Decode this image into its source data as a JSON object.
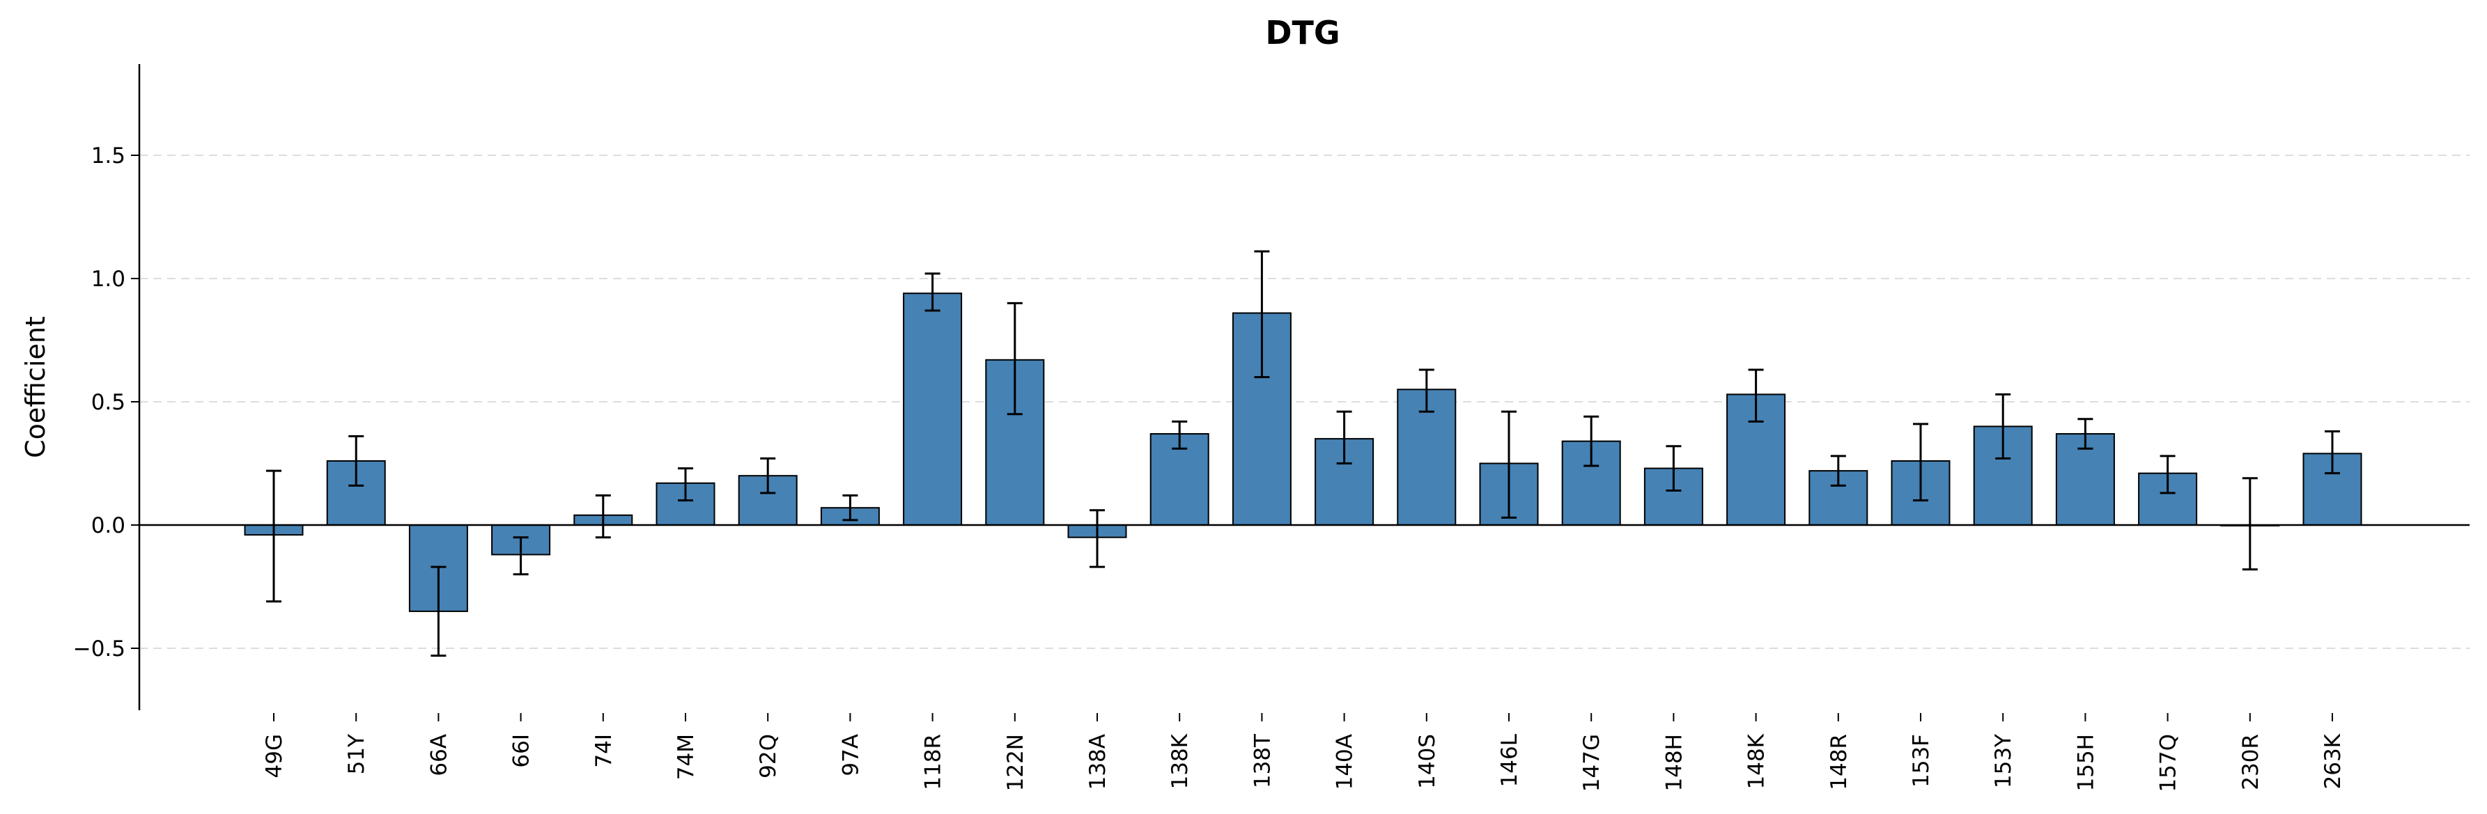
{
  "chart_data": {
    "type": "bar",
    "title": "DTG",
    "xlabel": "",
    "ylabel": "Coefficient",
    "ylim": [
      -0.75,
      1.88
    ],
    "yticks": [
      -0.5,
      0.0,
      0.5,
      1.0,
      1.5
    ],
    "ytick_labels": [
      "−0.5",
      "0.0",
      "0.5",
      "1.0",
      "1.5"
    ],
    "grid": "horizontal dashed",
    "categories": [
      "49G",
      "51Y",
      "66A",
      "66I",
      "74I",
      "74M",
      "92Q",
      "97A",
      "118R",
      "122N",
      "138A",
      "138K",
      "138T",
      "140A",
      "140S",
      "146L",
      "147G",
      "148H",
      "148K",
      "148R",
      "153F",
      "153Y",
      "155H",
      "157Q",
      "230R",
      "263K"
    ],
    "values": [
      -0.04,
      0.26,
      -0.35,
      -0.12,
      0.04,
      0.17,
      0.2,
      0.07,
      0.94,
      0.67,
      -0.05,
      0.37,
      0.86,
      0.35,
      0.55,
      0.25,
      0.34,
      0.23,
      0.53,
      0.22,
      0.26,
      0.4,
      0.37,
      0.21,
      0.0,
      0.29
    ],
    "error_low": [
      -0.31,
      0.16,
      -0.53,
      -0.2,
      -0.05,
      0.1,
      0.13,
      0.02,
      0.87,
      0.45,
      -0.17,
      0.31,
      0.6,
      0.25,
      0.46,
      0.03,
      0.24,
      0.14,
      0.42,
      0.16,
      0.1,
      0.27,
      0.31,
      0.13,
      -0.18,
      0.21
    ],
    "error_high": [
      0.22,
      0.36,
      -0.17,
      -0.05,
      0.12,
      0.23,
      0.27,
      0.12,
      1.02,
      0.9,
      0.06,
      0.42,
      1.11,
      0.46,
      0.63,
      0.46,
      0.44,
      0.32,
      0.63,
      0.28,
      0.41,
      0.53,
      0.43,
      0.28,
      0.19,
      0.38
    ],
    "colors": {
      "bar": "#4682b4",
      "bar_edge": "#000000",
      "error": "#000000",
      "grid": "#dddddd",
      "axis": "#000000"
    }
  }
}
